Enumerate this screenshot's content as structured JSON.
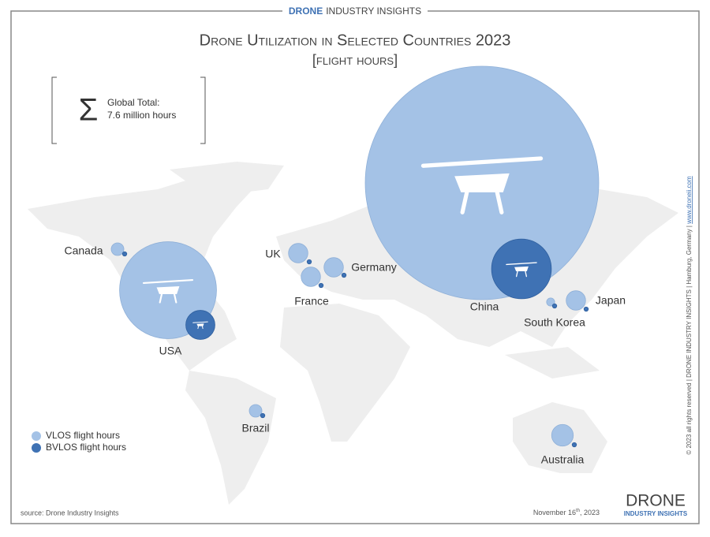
{
  "header": {
    "brand": "DRONE",
    "rest": "INDUSTRY INSIGHTS"
  },
  "chart_data": {
    "type": "bubble",
    "title": "Drone Utilization in Selected Countries 2023",
    "subtitle": "[flight hours]",
    "annotation": {
      "label": "Global Total:",
      "text": "7.6 million hours"
    },
    "categories": [
      "China",
      "USA",
      "Canada",
      "UK",
      "Germany",
      "France",
      "Japan",
      "South Korea",
      "Brazil",
      "Australia"
    ],
    "series": [
      {
        "name": "VLOS flight hours",
        "color": "#a4c2e6",
        "values": [
          5.8,
          1.0,
          0.017,
          0.04,
          0.04,
          0.04,
          0.04,
          0.007,
          0.017,
          0.05
        ]
      },
      {
        "name": "BVLOS flight hours",
        "color": "#3f72b4",
        "values": [
          0.38,
          0.09,
          0.002,
          0.002,
          0.002,
          0.002,
          0.002,
          0.002,
          0.002,
          0.002
        ]
      }
    ]
  },
  "footer": {
    "source": "source: Drone Industry Insights",
    "date": [
      "November 16",
      "th",
      ", 2023"
    ],
    "side": "© 2023 all rights reserved  |  DRONE INDUSTRY INSIGHTS  |  Hamburg, Germany  |  ",
    "side_link": "www.droneii.com",
    "logo": [
      "DRONE",
      "INDUSTRY INSIGHTS"
    ]
  }
}
